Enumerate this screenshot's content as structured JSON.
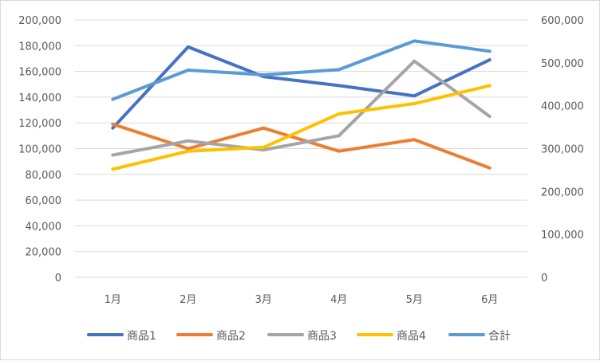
{
  "chart_data": {
    "type": "line",
    "categories": [
      "1月",
      "2月",
      "3月",
      "4月",
      "5月",
      "6月"
    ],
    "series": [
      {
        "name": "商品1",
        "axis": "left",
        "color": "#4472c4",
        "values": [
          116000,
          179000,
          156000,
          149000,
          141000,
          169000
        ]
      },
      {
        "name": "商品2",
        "axis": "left",
        "color": "#ed7d31",
        "values": [
          119000,
          100000,
          116000,
          98000,
          107000,
          85000
        ]
      },
      {
        "name": "商品3",
        "axis": "left",
        "color": "#a5a5a5",
        "values": [
          95000,
          106000,
          99000,
          110000,
          168000,
          125000
        ]
      },
      {
        "name": "商品4",
        "axis": "left",
        "color": "#ffc000",
        "values": [
          84000,
          98000,
          101000,
          127000,
          135000,
          149000
        ]
      },
      {
        "name": "合計",
        "axis": "right",
        "color": "#5b9bd5",
        "values": [
          415000,
          483000,
          472000,
          484000,
          551000,
          527000
        ]
      }
    ],
    "y_left": {
      "min": 0,
      "max": 200000,
      "step": 20000,
      "ticks": [
        "0",
        "20,000",
        "40,000",
        "60,000",
        "80,000",
        "100,000",
        "120,000",
        "140,000",
        "160,000",
        "180,000",
        "200,000"
      ]
    },
    "y_right": {
      "min": 0,
      "max": 600000,
      "step": 100000,
      "ticks": [
        "0",
        "100,000",
        "200,000",
        "300,000",
        "400,000",
        "500,000",
        "600,000"
      ]
    },
    "grid": true,
    "legend": "bottom",
    "title": "",
    "xlabel": "",
    "ylabel": ""
  }
}
